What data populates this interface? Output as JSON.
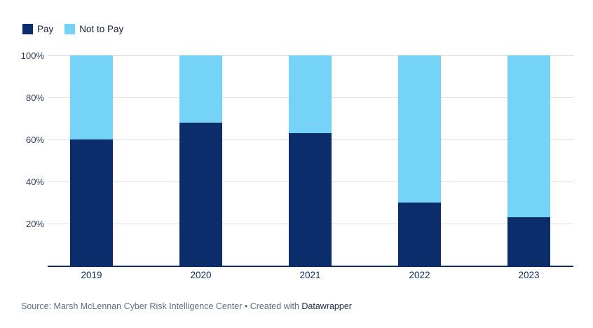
{
  "chart_data": {
    "type": "bar",
    "stacked": true,
    "percent": true,
    "categories": [
      "2019",
      "2020",
      "2021",
      "2022",
      "2023"
    ],
    "series": [
      {
        "name": "Pay",
        "color": "#0c2d6b",
        "values": [
          60,
          68,
          63,
          30,
          23
        ]
      },
      {
        "name": "Not to Pay",
        "color": "#74d3f7",
        "values": [
          40,
          32,
          37,
          70,
          77
        ]
      }
    ],
    "title": "",
    "xlabel": "",
    "ylabel": "",
    "ylim": [
      0,
      100
    ],
    "yticks": [
      {
        "value": 100,
        "label": "100%"
      },
      {
        "value": 80,
        "label": "80%"
      },
      {
        "value": 60,
        "label": "60%"
      },
      {
        "value": 40,
        "label": "40%"
      },
      {
        "value": 20,
        "label": "20%"
      }
    ],
    "grid": "horizontal",
    "gridline_color": "#dcdcdc",
    "axis_line_color": "#0c2d6b",
    "legend_position": "top-left"
  },
  "footer": {
    "source_text": "Source: Marsh McLennan Cyber Risk Intelligence Center • Created with ",
    "link_label": "Datawrapper"
  }
}
